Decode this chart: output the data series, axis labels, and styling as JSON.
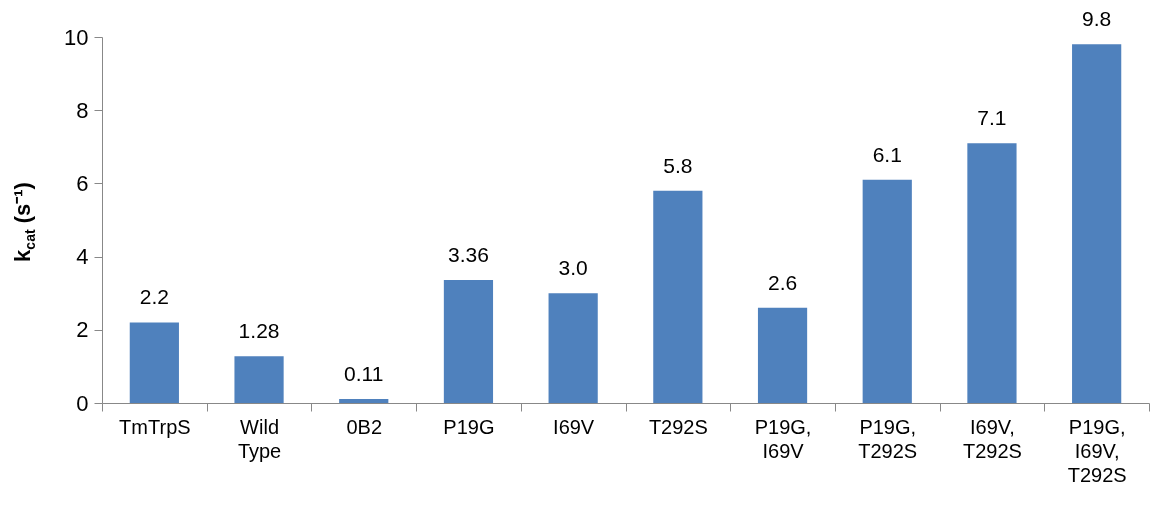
{
  "chart_data": {
    "type": "bar",
    "ylabel": "k$_{cat}$ (s⁻¹)",
    "categories": [
      "TmTrpS",
      "Wild Type",
      "0B2",
      "P19G",
      "I69V",
      "T292S",
      "P19G, I69V",
      "P19G, T292S",
      "I69V, T292S",
      "P19G, I69V, T292S"
    ],
    "values": [
      2.2,
      1.28,
      0.11,
      3.36,
      3.0,
      5.8,
      2.6,
      6.1,
      7.1,
      9.8
    ],
    "value_labels": [
      "2.2",
      "1.28",
      "0.11",
      "3.36",
      "3.0",
      "5.8",
      "2.6",
      "6.1",
      "7.1",
      "9.8"
    ],
    "color": "#4f81bd",
    "ylim": [
      0,
      10
    ],
    "yticks": [
      0,
      2,
      4,
      6,
      8,
      10
    ]
  }
}
